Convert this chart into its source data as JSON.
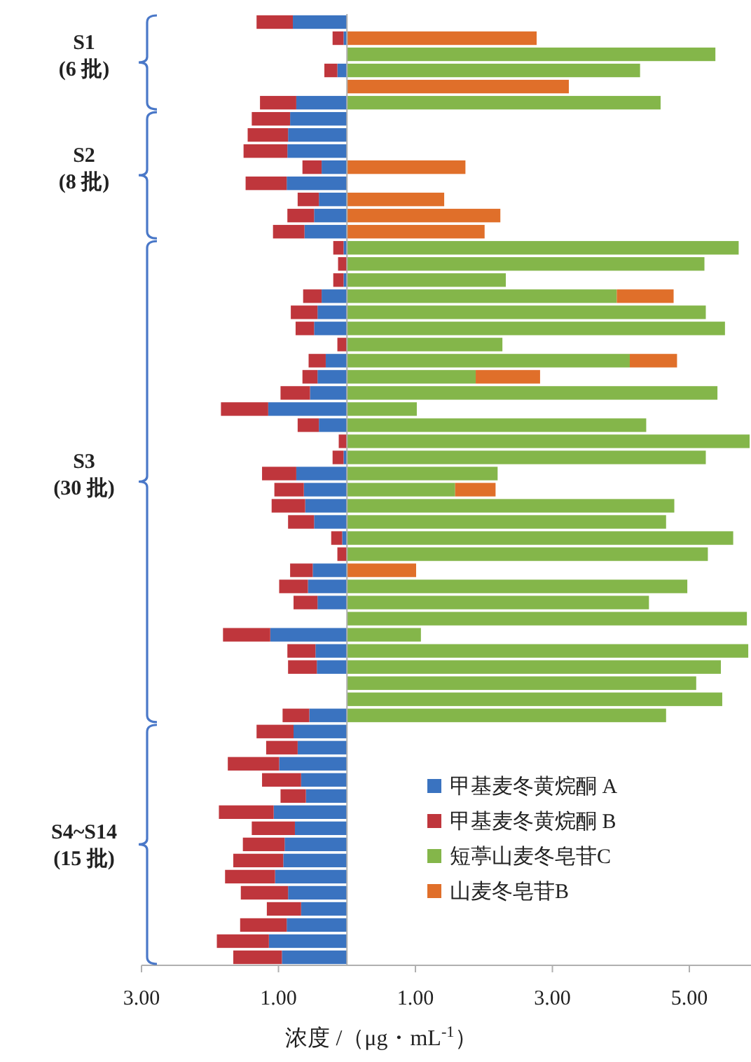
{
  "chart_data": {
    "type": "bar",
    "orientation": "horizontal",
    "stacked": true,
    "categories": [
      null,
      null,
      "S1 (6 批)",
      null,
      null,
      null,
      null,
      null,
      null,
      "S2 (8 批)",
      null,
      null,
      null,
      null,
      null,
      null,
      null,
      null,
      null,
      null,
      null,
      null,
      null,
      null,
      null,
      null,
      null,
      null,
      "S3 (30 批)",
      null,
      null,
      null,
      null,
      null,
      null,
      null,
      null,
      null,
      null,
      null,
      null,
      null,
      null,
      null,
      null,
      null,
      null,
      null,
      null,
      null,
      null,
      "S4~S14 (15 批)",
      null,
      null,
      null,
      null,
      null,
      null,
      null
    ],
    "series": [
      {
        "name": "甲基麦冬黄烷酮 A",
        "color": "#3a73c0",
        "values": [
          -0.79,
          -0.05,
          null,
          -0.14,
          null,
          -0.74,
          -0.83,
          -0.86,
          -0.87,
          -0.37,
          -0.88,
          -0.41,
          -0.48,
          -0.62,
          -0.05,
          null,
          -0.05,
          -0.37,
          -0.43,
          -0.48,
          null,
          -0.31,
          -0.43,
          -0.54,
          -1.15,
          -0.41,
          null,
          -0.05,
          -0.74,
          -0.63,
          -0.61,
          -0.48,
          -0.07,
          null,
          -0.5,
          -0.57,
          -0.43,
          null,
          -1.12,
          -0.46,
          -0.44,
          null,
          null,
          -0.55,
          -0.78,
          -0.72,
          -0.99,
          -0.67,
          -0.6,
          -1.07,
          -0.76,
          -0.91,
          -0.93,
          -1.05,
          -0.86,
          -0.67,
          -0.88,
          -1.14,
          -0.95
        ]
      },
      {
        "name": "甲基麦冬黄烷酮 B",
        "color": "#bf363c",
        "values": [
          -0.53,
          -0.16,
          null,
          -0.19,
          null,
          -0.53,
          -0.56,
          -0.59,
          -0.64,
          -0.28,
          -0.6,
          -0.31,
          -0.39,
          -0.46,
          -0.15,
          -0.13,
          -0.15,
          -0.27,
          -0.39,
          -0.27,
          -0.14,
          -0.25,
          -0.22,
          -0.43,
          -0.69,
          -0.31,
          -0.12,
          -0.16,
          -0.5,
          -0.43,
          -0.49,
          -0.38,
          -0.16,
          -0.14,
          -0.33,
          -0.42,
          -0.35,
          null,
          -0.69,
          -0.41,
          -0.42,
          null,
          null,
          -0.39,
          -0.54,
          -0.46,
          -0.75,
          -0.57,
          -0.37,
          -0.8,
          -0.63,
          -0.61,
          -0.73,
          -0.73,
          -0.69,
          -0.5,
          -0.68,
          -0.76,
          -0.71
        ]
      },
      {
        "name": "短葶山麦冬皂苷C",
        "color": "#84b64a",
        "values": [
          null,
          null,
          5.38,
          4.28,
          null,
          4.58,
          null,
          null,
          null,
          null,
          null,
          null,
          null,
          null,
          5.72,
          5.22,
          2.32,
          3.94,
          5.24,
          5.52,
          2.27,
          4.13,
          1.88,
          5.41,
          1.02,
          4.37,
          5.88,
          5.24,
          2.2,
          1.58,
          4.78,
          4.66,
          5.64,
          5.27,
          null,
          4.97,
          4.41,
          5.84,
          1.08,
          5.86,
          5.46,
          5.1,
          5.48,
          4.66,
          null,
          null,
          null,
          null,
          null,
          null,
          null,
          null,
          null,
          null,
          null,
          null,
          null,
          null,
          null
        ]
      },
      {
        "name": "山麦冬皂苷B",
        "color": "#e06f2a",
        "values": [
          null,
          2.77,
          null,
          null,
          3.24,
          null,
          null,
          null,
          null,
          1.73,
          null,
          1.42,
          2.24,
          2.01,
          null,
          null,
          null,
          0.83,
          null,
          null,
          null,
          0.69,
          0.94,
          null,
          null,
          null,
          null,
          null,
          null,
          0.59,
          null,
          null,
          null,
          null,
          1.01,
          null,
          null,
          null,
          null,
          null,
          null,
          null,
          null,
          null,
          null,
          null,
          null,
          null,
          null,
          null,
          null,
          null,
          null,
          null,
          null,
          null,
          null,
          null,
          null
        ]
      }
    ],
    "xlim": [
      -3,
      5.9
    ],
    "xticks": [
      {
        "value": -3,
        "label": "3.00"
      },
      {
        "value": -1,
        "label": "1.00"
      },
      {
        "value": 1,
        "label": "1.00"
      },
      {
        "value": 3,
        "label": "3.00"
      },
      {
        "value": 5,
        "label": "5.00"
      }
    ],
    "xlabel": "浓度 /（μg・mL$^{-1}$）",
    "legend": "bottom right"
  }
}
